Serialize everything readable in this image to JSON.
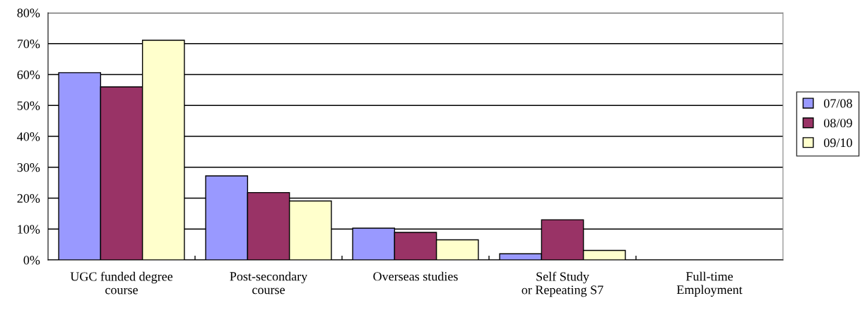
{
  "chart_data": {
    "type": "bar",
    "categories": [
      "UGC funded degree\ncourse",
      "Post-secondary\ncourse",
      "Overseas studies",
      "Self Study\nor Repeating S7",
      "Full-time\nEmployment"
    ],
    "series": [
      {
        "name": "07/08",
        "color": "#9999ff",
        "values": [
          60.6,
          27.2,
          10.3,
          2.0,
          null
        ]
      },
      {
        "name": "08/09",
        "color": "#993366",
        "values": [
          56.0,
          21.8,
          8.9,
          13.0,
          null
        ]
      },
      {
        "name": "09/10",
        "color": "#ffffcc",
        "values": [
          71.1,
          19.1,
          6.5,
          3.1,
          null
        ]
      }
    ],
    "ylim": [
      0,
      80
    ],
    "yticks": [
      {
        "value": 0,
        "label": "0%"
      },
      {
        "value": 10,
        "label": "10%"
      },
      {
        "value": 20,
        "label": "20%"
      },
      {
        "value": 30,
        "label": "30%"
      },
      {
        "value": 40,
        "label": "40%"
      },
      {
        "value": 50,
        "label": "50%"
      },
      {
        "value": 60,
        "label": "60%"
      },
      {
        "value": 70,
        "label": "70%"
      },
      {
        "value": 80,
        "label": "80%"
      }
    ],
    "grid": "y",
    "legend": "right"
  }
}
